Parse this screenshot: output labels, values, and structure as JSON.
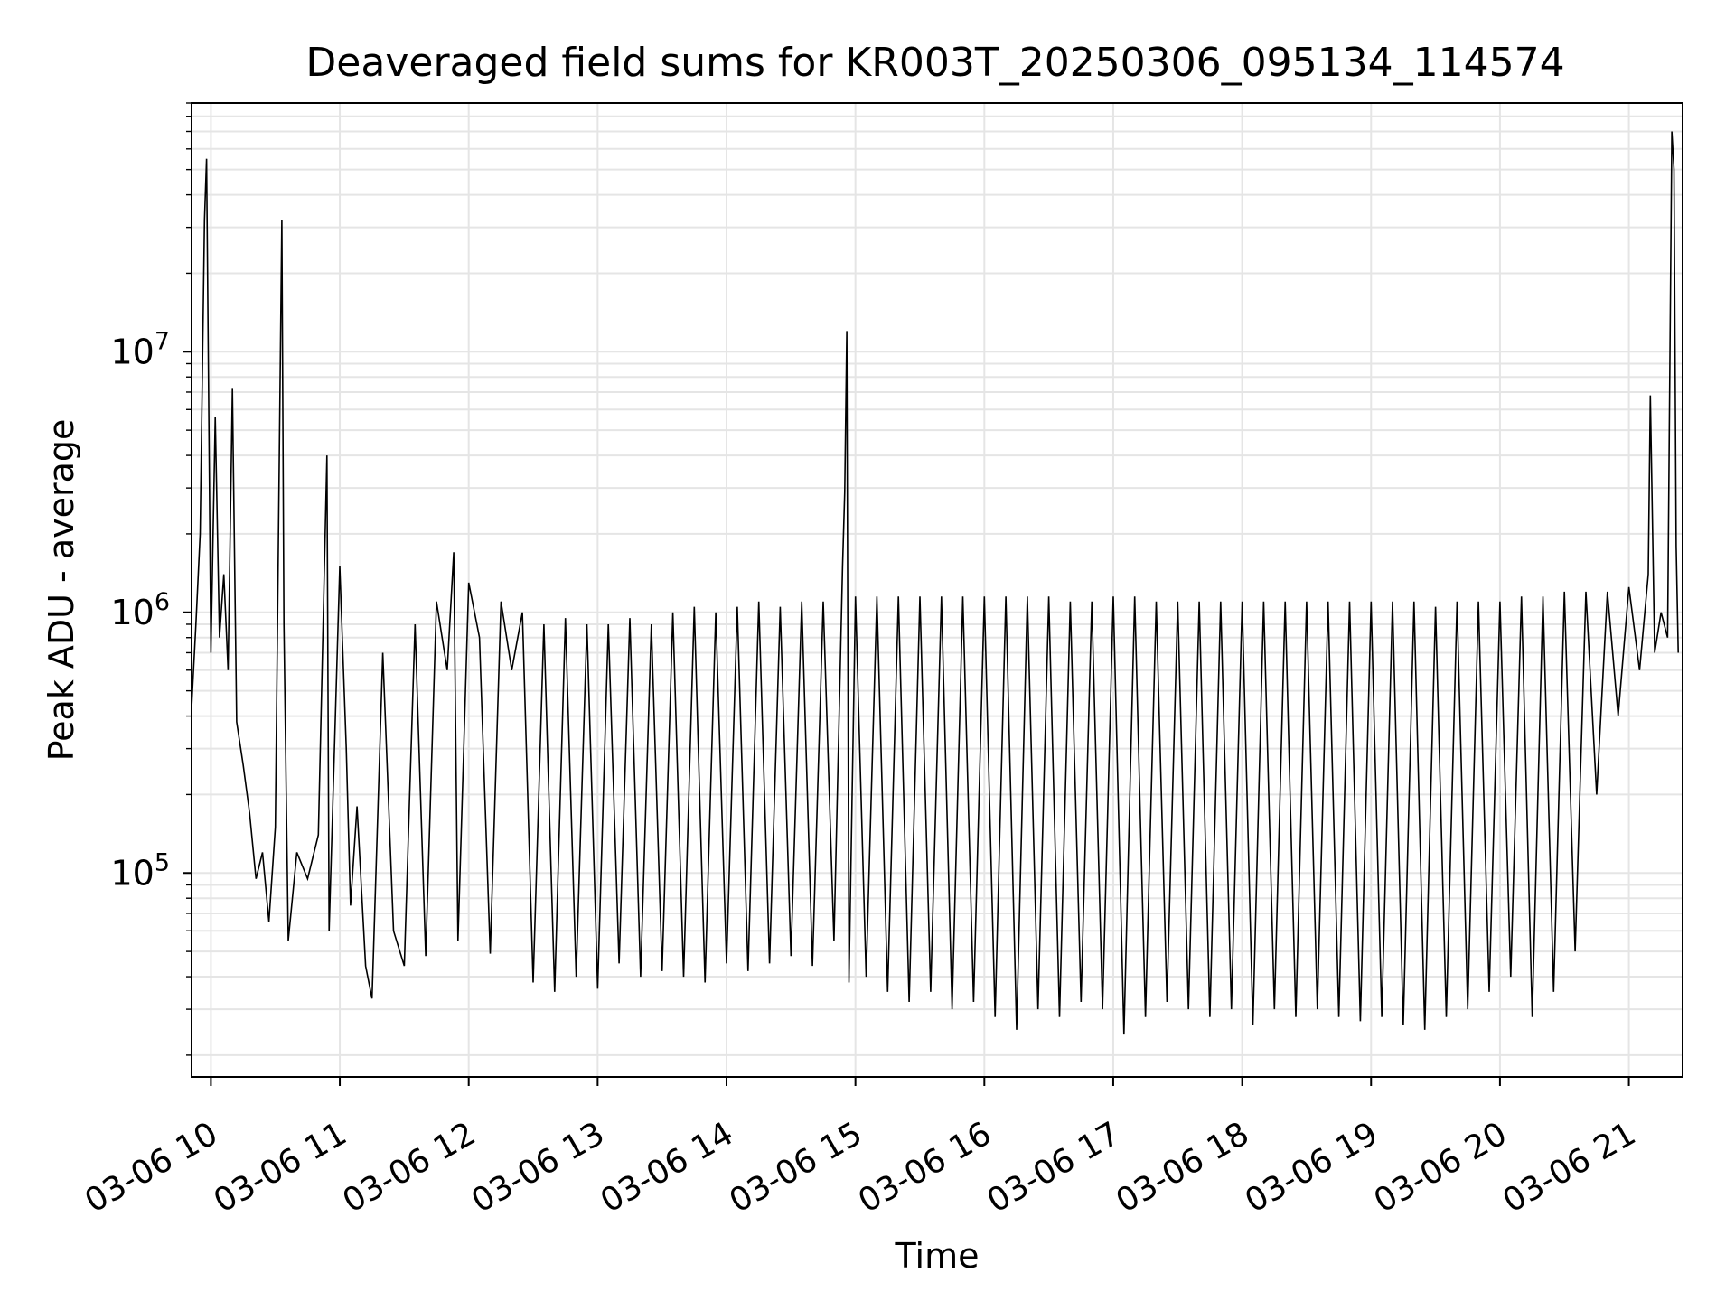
{
  "chart_data": {
    "type": "line",
    "title": "Deaveraged field sums for KR003T_20250306_095134_114574",
    "xlabel": "Time",
    "ylabel": "Peak ADU - average",
    "yscale": "log",
    "grid": true,
    "line_color": "#000000",
    "grid_color": "#e5e5e5",
    "xlim": [
      "2025-03-06 09:51",
      "2025-03-06 21:25"
    ],
    "ylim": [
      16500,
      90000000
    ],
    "x_ticks": [
      "03-06 10",
      "03-06 11",
      "03-06 12",
      "03-06 13",
      "03-06 14",
      "03-06 15",
      "03-06 16",
      "03-06 17",
      "03-06 18",
      "03-06 19",
      "03-06 20",
      "03-06 21"
    ],
    "y_ticks": [
      {
        "value": 100000,
        "base": "10",
        "exp": "5"
      },
      {
        "value": 1000000,
        "base": "10",
        "exp": "6"
      },
      {
        "value": 10000000,
        "base": "10",
        "exp": "7"
      }
    ],
    "series": [
      {
        "points": [
          [
            "09:51",
            430000
          ],
          [
            "09:53",
            900000
          ],
          [
            "09:55",
            2000000
          ],
          [
            "09:57",
            32000000
          ],
          [
            "09:58",
            55000000
          ],
          [
            "10:00",
            700000
          ],
          [
            "10:02",
            5600000
          ],
          [
            "10:04",
            800000
          ],
          [
            "10:06",
            1400000
          ],
          [
            "10:08",
            600000
          ],
          [
            "10:10",
            7200000
          ],
          [
            "10:12",
            380000
          ],
          [
            "10:15",
            260000
          ],
          [
            "10:18",
            170000
          ],
          [
            "10:21",
            95000
          ],
          [
            "10:24",
            120000
          ],
          [
            "10:27",
            65000
          ],
          [
            "10:30",
            150000
          ],
          [
            "10:33",
            32000000
          ],
          [
            "10:34",
            900000
          ],
          [
            "10:36",
            55000
          ],
          [
            "10:40",
            120000
          ],
          [
            "10:45",
            95000
          ],
          [
            "10:50",
            140000
          ],
          [
            "10:54",
            4000000
          ],
          [
            "10:55",
            60000
          ],
          [
            "11:00",
            1500000
          ],
          [
            "11:03",
            300000
          ],
          [
            "11:05",
            75000
          ],
          [
            "11:08",
            180000
          ],
          [
            "11:12",
            44000
          ],
          [
            "11:15",
            33000
          ],
          [
            "11:20",
            700000
          ],
          [
            "11:25",
            60000
          ],
          [
            "11:30",
            44000
          ],
          [
            "11:35",
            900000
          ],
          [
            "11:40",
            48000
          ],
          [
            "11:45",
            1100000
          ],
          [
            "11:50",
            600000
          ],
          [
            "11:53",
            1700000
          ],
          [
            "11:55",
            55000
          ],
          [
            "12:00",
            1300000
          ],
          [
            "12:05",
            800000
          ],
          [
            "12:10",
            49000
          ],
          [
            "12:15",
            1100000
          ],
          [
            "12:20",
            600000
          ],
          [
            "12:25",
            1000000
          ],
          [
            "12:30",
            38000
          ],
          [
            "12:35",
            900000
          ],
          [
            "12:40",
            35000
          ],
          [
            "12:45",
            950000
          ],
          [
            "12:50",
            40000
          ],
          [
            "12:55",
            900000
          ],
          [
            "13:00",
            36000
          ],
          [
            "13:05",
            900000
          ],
          [
            "13:10",
            45000
          ],
          [
            "13:15",
            950000
          ],
          [
            "13:20",
            40000
          ],
          [
            "13:25",
            900000
          ],
          [
            "13:30",
            42000
          ],
          [
            "13:35",
            1000000
          ],
          [
            "13:40",
            40000
          ],
          [
            "13:45",
            1050000
          ],
          [
            "13:50",
            38000
          ],
          [
            "13:55",
            1000000
          ],
          [
            "14:00",
            45000
          ],
          [
            "14:05",
            1050000
          ],
          [
            "14:10",
            42000
          ],
          [
            "14:15",
            1100000
          ],
          [
            "14:20",
            45000
          ],
          [
            "14:25",
            1050000
          ],
          [
            "14:30",
            48000
          ],
          [
            "14:35",
            1100000
          ],
          [
            "14:40",
            44000
          ],
          [
            "14:45",
            1100000
          ],
          [
            "14:50",
            55000
          ],
          [
            "14:54",
            1500000
          ],
          [
            "14:55",
            2900000
          ],
          [
            "14:56",
            12000000
          ],
          [
            "14:57",
            38000
          ],
          [
            "15:00",
            1150000
          ],
          [
            "15:05",
            40000
          ],
          [
            "15:10",
            1150000
          ],
          [
            "15:15",
            35000
          ],
          [
            "15:20",
            1150000
          ],
          [
            "15:25",
            32000
          ],
          [
            "15:30",
            1150000
          ],
          [
            "15:35",
            35000
          ],
          [
            "15:40",
            1150000
          ],
          [
            "15:45",
            30000
          ],
          [
            "15:50",
            1150000
          ],
          [
            "15:55",
            32000
          ],
          [
            "16:00",
            1150000
          ],
          [
            "16:05",
            28000
          ],
          [
            "16:10",
            1150000
          ],
          [
            "16:15",
            25000
          ],
          [
            "16:20",
            1150000
          ],
          [
            "16:25",
            30000
          ],
          [
            "16:30",
            1150000
          ],
          [
            "16:35",
            28000
          ],
          [
            "16:40",
            1100000
          ],
          [
            "16:45",
            32000
          ],
          [
            "16:50",
            1100000
          ],
          [
            "16:55",
            30000
          ],
          [
            "17:00",
            1150000
          ],
          [
            "17:05",
            24000
          ],
          [
            "17:10",
            1150000
          ],
          [
            "17:15",
            28000
          ],
          [
            "17:20",
            1100000
          ],
          [
            "17:25",
            32000
          ],
          [
            "17:30",
            1100000
          ],
          [
            "17:35",
            30000
          ],
          [
            "17:40",
            1100000
          ],
          [
            "17:45",
            28000
          ],
          [
            "17:50",
            1100000
          ],
          [
            "17:55",
            30000
          ],
          [
            "18:00",
            1100000
          ],
          [
            "18:05",
            26000
          ],
          [
            "18:10",
            1100000
          ],
          [
            "18:15",
            30000
          ],
          [
            "18:20",
            1100000
          ],
          [
            "18:25",
            28000
          ],
          [
            "18:30",
            1100000
          ],
          [
            "18:35",
            30000
          ],
          [
            "18:40",
            1100000
          ],
          [
            "18:45",
            28000
          ],
          [
            "18:50",
            1100000
          ],
          [
            "18:55",
            27000
          ],
          [
            "19:00",
            1100000
          ],
          [
            "19:05",
            28000
          ],
          [
            "19:10",
            1100000
          ],
          [
            "19:15",
            26000
          ],
          [
            "19:20",
            1100000
          ],
          [
            "19:25",
            25000
          ],
          [
            "19:30",
            1050000
          ],
          [
            "19:35",
            28000
          ],
          [
            "19:40",
            1100000
          ],
          [
            "19:45",
            30000
          ],
          [
            "19:50",
            1100000
          ],
          [
            "19:55",
            35000
          ],
          [
            "20:00",
            1100000
          ],
          [
            "20:05",
            40000
          ],
          [
            "20:10",
            1150000
          ],
          [
            "20:15",
            28000
          ],
          [
            "20:20",
            1150000
          ],
          [
            "20:25",
            35000
          ],
          [
            "20:30",
            1200000
          ],
          [
            "20:35",
            50000
          ],
          [
            "20:40",
            1200000
          ],
          [
            "20:45",
            200000
          ],
          [
            "20:50",
            1200000
          ],
          [
            "20:55",
            400000
          ],
          [
            "21:00",
            1250000
          ],
          [
            "21:05",
            600000
          ],
          [
            "21:09",
            1400000
          ],
          [
            "21:10",
            6800000
          ],
          [
            "21:12",
            700000
          ],
          [
            "21:15",
            1000000
          ],
          [
            "21:18",
            800000
          ],
          [
            "21:20",
            70000000
          ],
          [
            "21:21",
            50000000
          ],
          [
            "21:22",
            1800000
          ],
          [
            "21:23",
            700000
          ]
        ]
      }
    ]
  }
}
